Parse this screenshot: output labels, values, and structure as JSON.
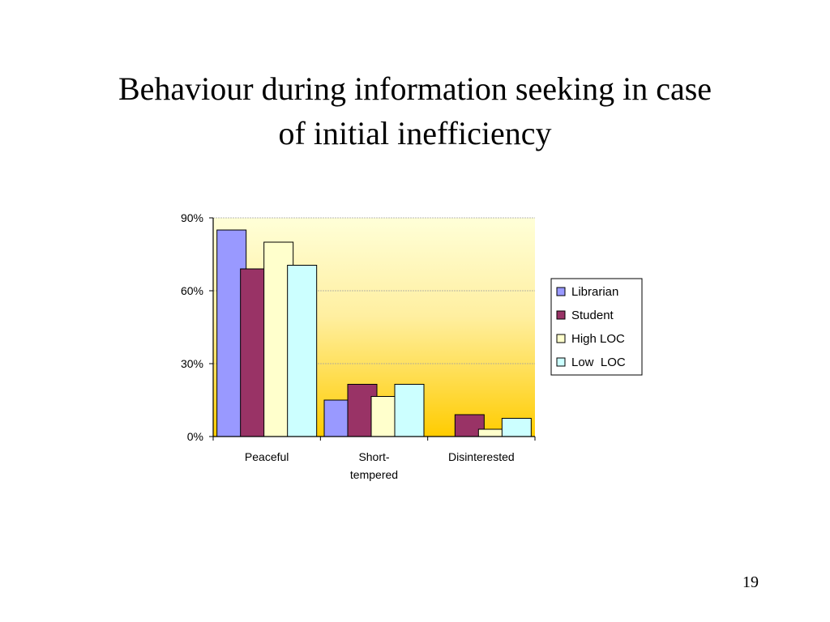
{
  "slide": {
    "title_line1": "Behaviour during information seeking  in case",
    "title_line2": "of initial inefficiency",
    "page_number": "19"
  },
  "chart_data": {
    "type": "bar",
    "categories": [
      "Peaceful",
      "Short-tempered",
      "Disinterested"
    ],
    "category_label_lines": [
      [
        "Peaceful"
      ],
      [
        "Short-",
        "tempered"
      ],
      [
        "Disinterested"
      ]
    ],
    "series": [
      {
        "name": "Librarian",
        "color": "#9999ff",
        "values": [
          85,
          15,
          0
        ]
      },
      {
        "name": "Student",
        "color": "#993366",
        "values": [
          69,
          21.5,
          9
        ]
      },
      {
        "name": "High LOC",
        "color": "#ffffcc",
        "values": [
          80,
          16.5,
          3
        ]
      },
      {
        "name": "Low  LOC",
        "color": "#ccffff",
        "values": [
          70.5,
          21.5,
          7.5
        ]
      }
    ],
    "yticks": [
      "0%",
      "30%",
      "60%",
      "90%"
    ],
    "ytick_values": [
      0,
      30,
      60,
      90
    ],
    "ylim": [
      0,
      90
    ],
    "xlabel": "",
    "ylabel": "",
    "grid": true,
    "legend": "right",
    "plot_background": "gradient light yellow to gold"
  }
}
